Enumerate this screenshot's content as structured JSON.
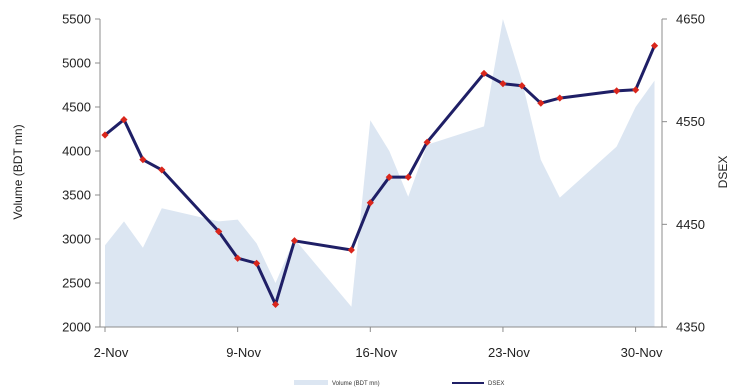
{
  "chart_data": {
    "type": "area+line",
    "x_tick_labels": [
      "2-Nov",
      "9-Nov",
      "16-Nov",
      "23-Nov",
      "30-Nov"
    ],
    "left_axis": {
      "label": "Volume (BDT mn)",
      "ylim": [
        2000,
        5500
      ],
      "ticks": [
        "2000",
        "2500",
        "3000",
        "3500",
        "4000",
        "4500",
        "5000",
        "5500"
      ]
    },
    "right_axis": {
      "label": "DSEX",
      "ylim": [
        4350,
        4650
      ],
      "ticks": [
        "4350",
        "4450",
        "4550",
        "4650"
      ]
    },
    "grid": false,
    "legend_position": "bottom",
    "series": [
      {
        "name": "Volume (BDT mn)",
        "kind": "area",
        "axis": "left",
        "color": "#dce6f2",
        "points": [
          {
            "x": "2-Nov",
            "y": 2930
          },
          {
            "x": "3-Nov",
            "y": 3200
          },
          {
            "x": "4-Nov",
            "y": 2900
          },
          {
            "x": "5-Nov",
            "y": 3350
          },
          {
            "x": "8-Nov",
            "y": 3200
          },
          {
            "x": "9-Nov",
            "y": 3220
          },
          {
            "x": "10-Nov",
            "y": 2950
          },
          {
            "x": "11-Nov",
            "y": 2500
          },
          {
            "x": "12-Nov",
            "y": 3000
          },
          {
            "x": "15-Nov",
            "y": 2230
          },
          {
            "x": "16-Nov",
            "y": 4350
          },
          {
            "x": "17-Nov",
            "y": 4000
          },
          {
            "x": "18-Nov",
            "y": 3480
          },
          {
            "x": "19-Nov",
            "y": 4070
          },
          {
            "x": "22-Nov",
            "y": 4280
          },
          {
            "x": "23-Nov",
            "y": 5600
          },
          {
            "x": "24-Nov",
            "y": 4800
          },
          {
            "x": "25-Nov",
            "y": 3900
          },
          {
            "x": "26-Nov",
            "y": 3470
          },
          {
            "x": "29-Nov",
            "y": 4050
          },
          {
            "x": "30-Nov",
            "y": 4500
          },
          {
            "x": "1-Dec",
            "y": 4800
          }
        ]
      },
      {
        "name": "DSEX",
        "kind": "line",
        "axis": "right",
        "color": "#1f1f66",
        "marker_color": "#d9261c",
        "points": [
          {
            "x": "2-Nov",
            "y": 4537
          },
          {
            "x": "3-Nov",
            "y": 4552
          },
          {
            "x": "4-Nov",
            "y": 4513
          },
          {
            "x": "5-Nov",
            "y": 4503
          },
          {
            "x": "8-Nov",
            "y": 4443
          },
          {
            "x": "9-Nov",
            "y": 4417
          },
          {
            "x": "10-Nov",
            "y": 4412
          },
          {
            "x": "11-Nov",
            "y": 4372
          },
          {
            "x": "12-Nov",
            "y": 4434
          },
          {
            "x": "15-Nov",
            "y": 4425
          },
          {
            "x": "16-Nov",
            "y": 4471
          },
          {
            "x": "17-Nov",
            "y": 4496
          },
          {
            "x": "18-Nov",
            "y": 4496
          },
          {
            "x": "19-Nov",
            "y": 4530
          },
          {
            "x": "22-Nov",
            "y": 4597
          },
          {
            "x": "23-Nov",
            "y": 4587
          },
          {
            "x": "24-Nov",
            "y": 4585
          },
          {
            "x": "25-Nov",
            "y": 4568
          },
          {
            "x": "26-Nov",
            "y": 4573
          },
          {
            "x": "29-Nov",
            "y": 4580
          },
          {
            "x": "30-Nov",
            "y": 4581
          },
          {
            "x": "1-Dec",
            "y": 4624
          }
        ]
      }
    ]
  }
}
